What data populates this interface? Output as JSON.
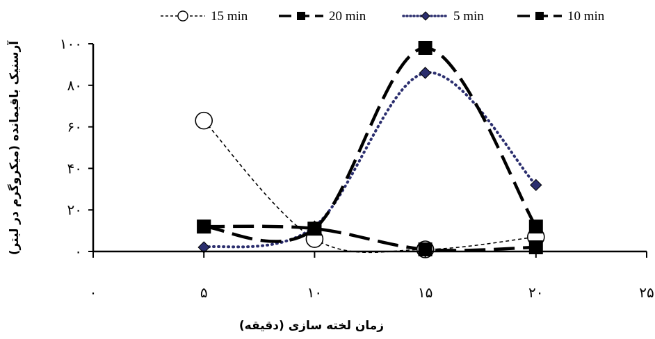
{
  "chart_data": {
    "type": "line",
    "xlabel": "زمان لخته سازی (دقیقه)",
    "ylabel": "آرسنیک باقیمانده (میکروگرم در لیتر)",
    "xlim": [
      0,
      25
    ],
    "ylim": [
      0,
      100
    ],
    "x_ticks": [
      0,
      5,
      10,
      15,
      20,
      25
    ],
    "x_tick_labels": [
      "۰",
      "۵",
      "۱۰",
      "۱۵",
      "۲۰",
      "۲۵"
    ],
    "y_ticks": [
      0,
      20,
      40,
      60,
      80,
      100
    ],
    "y_tick_labels": [
      "۰",
      "۲۰",
      "۴۰",
      "۶۰",
      "۸۰",
      "۱۰۰"
    ],
    "legend_position": "top",
    "grid": false,
    "x": [
      5,
      10,
      15,
      20
    ],
    "series": [
      {
        "name": "15 min",
        "values": [
          63,
          6,
          1,
          7
        ],
        "style": "short-dash",
        "marker": "open-circle",
        "color": "#000000"
      },
      {
        "name": "20 min",
        "values": [
          12,
          11,
          1,
          2
        ],
        "style": "long-dash",
        "marker": "square",
        "color": "#000000"
      },
      {
        "name": "5 min",
        "values": [
          2,
          12,
          86,
          32
        ],
        "style": "dotted",
        "marker": "diamond",
        "color": "#2b2e6e"
      },
      {
        "name": "10 min",
        "values": [
          12,
          11,
          98,
          12
        ],
        "style": "long-dash",
        "marker": "square",
        "color": "#000000"
      }
    ]
  }
}
